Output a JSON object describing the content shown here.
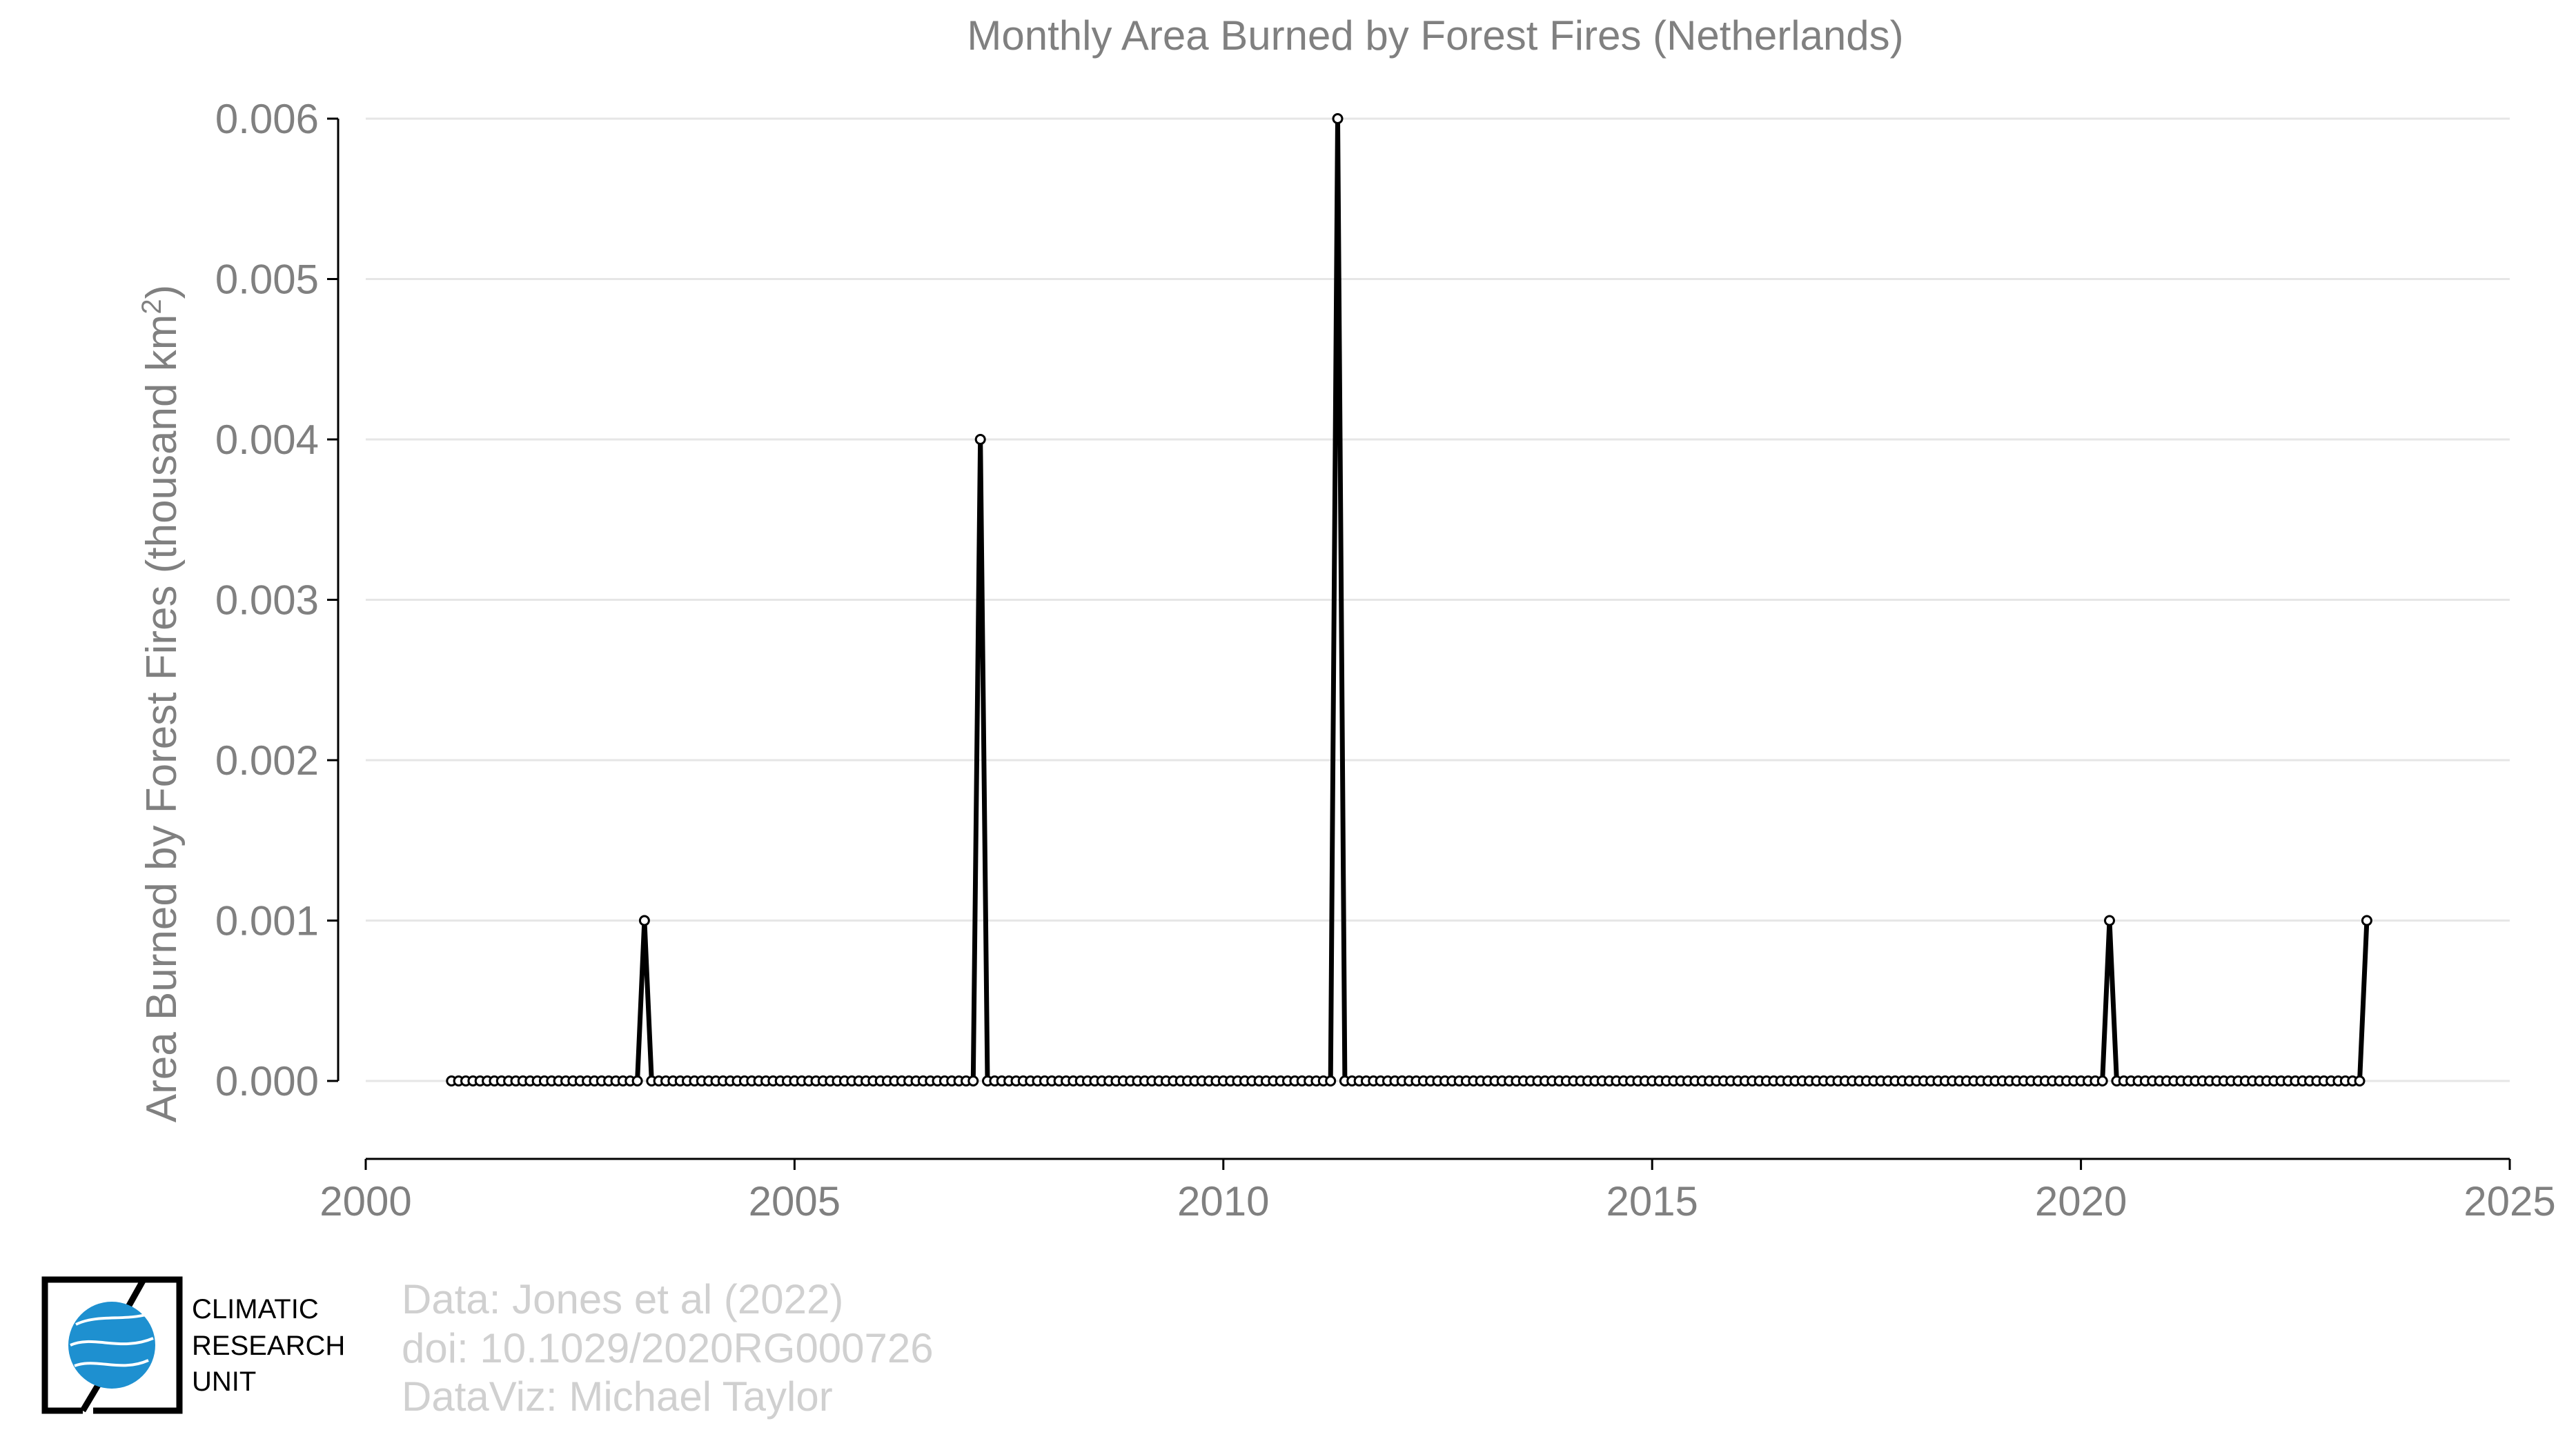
{
  "chart_data": {
    "type": "line",
    "title": "Monthly Area Burned by Forest Fires (Netherlands)",
    "xlabel": "",
    "ylabel": "Area Burned by Forest Fires (thousand km",
    "ylabel_sup": "2",
    "ylabel_close": ")",
    "xlim": [
      2000,
      2025
    ],
    "ylim": [
      0.0,
      0.006
    ],
    "xticks": [
      2000,
      2005,
      2010,
      2015,
      2020,
      2025
    ],
    "yticks": [
      "0.000",
      "0.001",
      "0.002",
      "0.003",
      "0.004",
      "0.005",
      "0.006"
    ],
    "grid": "horizontal",
    "series_start": "2001-01",
    "series_end": "2023-05",
    "series": [
      {
        "nonzero_points": [
          {
            "date": "2003-04",
            "value": 0.001
          },
          {
            "date": "2007-03",
            "value": 0.004
          },
          {
            "date": "2011-05",
            "value": 0.006
          },
          {
            "date": "2020-05",
            "value": 0.001
          },
          {
            "date": "2023-05",
            "value": 0.001
          }
        ],
        "default_value": 0.0,
        "color": "#000000"
      }
    ]
  },
  "credits": {
    "line1": "Data: Jones et al (2022)",
    "line2": "doi: 10.1029/2020RG000726",
    "line3": "DataViz: Michael Taylor"
  },
  "logo": {
    "line1": "CLIMATIC",
    "line2": "RESEARCH",
    "line3": "UNIT",
    "icon": "globe-icon",
    "accent": "#1e90d0"
  }
}
